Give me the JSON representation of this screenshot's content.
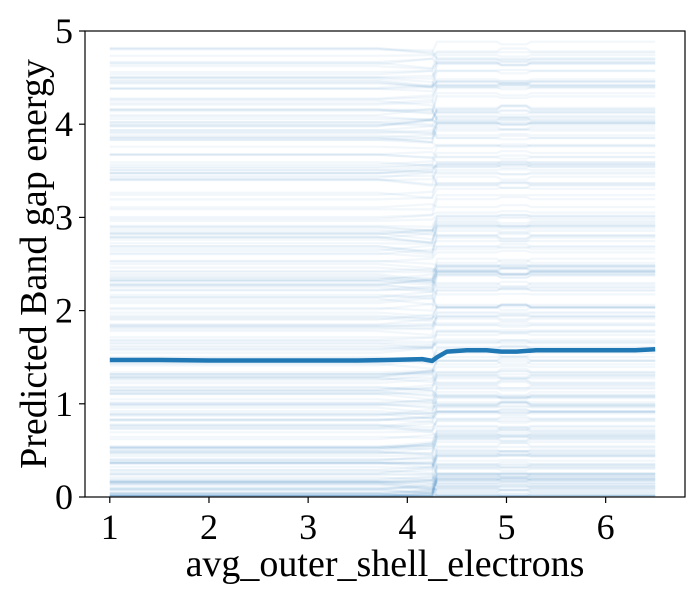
{
  "chart_data": {
    "type": "line",
    "title": "",
    "xlabel": "avg_outer_shell_electrons",
    "ylabel": "Predicted Band gap energy",
    "xlim": [
      0.75,
      6.8
    ],
    "ylim": [
      0,
      5
    ],
    "xticks": [
      1,
      2,
      3,
      4,
      5,
      6
    ],
    "yticks": [
      0,
      1,
      2,
      3,
      4,
      5
    ],
    "grid": false,
    "legend": "none",
    "colors": {
      "ice": "#1f77b4",
      "average": "#1f77b4"
    },
    "ice_lines": {
      "description_free": true,
      "count": 260,
      "x_range": [
        1.0,
        6.5
      ],
      "y_range": [
        0.0,
        4.85
      ],
      "step_x": 4.28
    },
    "series": [
      {
        "x": [
          1.0,
          1.5,
          2.0,
          2.5,
          3.0,
          3.5,
          3.8,
          4.0,
          4.15,
          4.25,
          4.3,
          4.4,
          4.6,
          4.8,
          4.95,
          5.1,
          5.3,
          5.6,
          6.0,
          6.3,
          6.5
        ],
        "y": [
          1.47,
          1.47,
          1.465,
          1.465,
          1.465,
          1.465,
          1.47,
          1.475,
          1.48,
          1.46,
          1.5,
          1.56,
          1.575,
          1.575,
          1.56,
          1.56,
          1.575,
          1.575,
          1.575,
          1.575,
          1.585
        ]
      }
    ]
  }
}
